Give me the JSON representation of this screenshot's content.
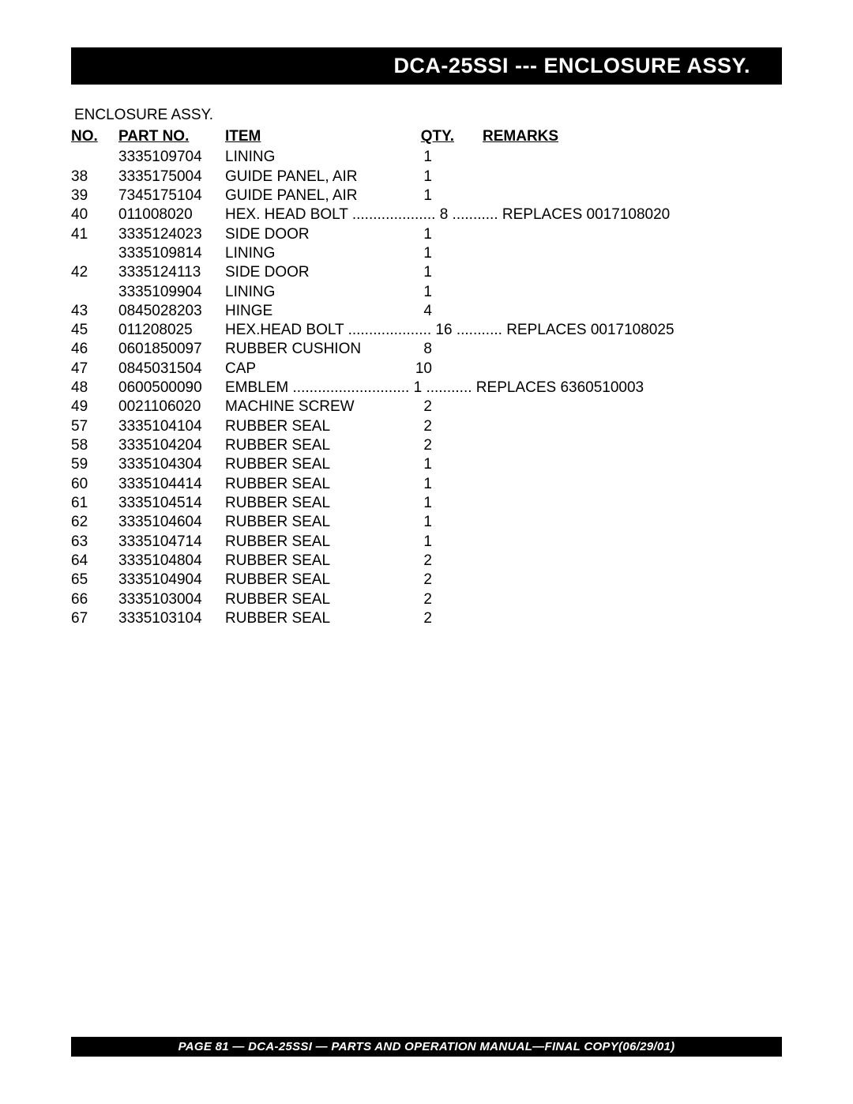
{
  "title_bar": "DCA-25SSI --- ENCLOSURE ASSY.",
  "section_heading": "ENCLOSURE ASSY.",
  "headers": {
    "no": "NO.",
    "part": "PART NO.",
    "item": "ITEM",
    "qty": "QTY.",
    "remarks": "REMARKS"
  },
  "rows": [
    {
      "no": "",
      "part": "3335109704",
      "item": "LINING",
      "qty": "1",
      "remarks": "",
      "dotted": false
    },
    {
      "no": "38",
      "part": "3335175004",
      "item": "GUIDE PANEL, AIR",
      "qty": "1",
      "remarks": "",
      "dotted": false
    },
    {
      "no": "39",
      "part": "7345175104",
      "item": "GUIDE PANEL, AIR",
      "qty": "1",
      "remarks": "",
      "dotted": false
    },
    {
      "no": "40",
      "part": "011008020",
      "item": "HEX. HEAD BOLT",
      "qty": "8",
      "remarks": "REPLACES 0017108020",
      "dotted": true
    },
    {
      "no": "41",
      "part": "3335124023",
      "item": "SIDE DOOR",
      "qty": "1",
      "remarks": "",
      "dotted": false
    },
    {
      "no": "",
      "part": "3335109814",
      "item": "LINING",
      "qty": "1",
      "remarks": "",
      "dotted": false
    },
    {
      "no": "42",
      "part": "3335124113",
      "item": "SIDE DOOR",
      "qty": "1",
      "remarks": "",
      "dotted": false
    },
    {
      "no": "",
      "part": "3335109904",
      "item": "LINING",
      "qty": "1",
      "remarks": "",
      "dotted": false
    },
    {
      "no": "43",
      "part": "0845028203",
      "item": "HINGE",
      "qty": "4",
      "remarks": "",
      "dotted": false
    },
    {
      "no": "45",
      "part": "011208025",
      "item": "HEX.HEAD BOLT",
      "qty": "16",
      "remarks": "REPLACES 0017108025",
      "dotted": true
    },
    {
      "no": "46",
      "part": "0601850097",
      "item": "RUBBER CUSHION",
      "qty": "8",
      "remarks": "",
      "dotted": false
    },
    {
      "no": "47",
      "part": "0845031504",
      "item": "CAP",
      "qty": "10",
      "remarks": "",
      "dotted": false
    },
    {
      "no": "48",
      "part": "0600500090",
      "item": "EMBLEM",
      "qty": "1",
      "remarks": "REPLACES 6360510003",
      "dotted": true
    },
    {
      "no": "49",
      "part": "0021106020",
      "item": "MACHINE SCREW",
      "qty": "2",
      "remarks": "",
      "dotted": false
    },
    {
      "no": "57",
      "part": "3335104104",
      "item": "RUBBER SEAL",
      "qty": "2",
      "remarks": "",
      "dotted": false
    },
    {
      "no": "58",
      "part": "3335104204",
      "item": "RUBBER SEAL",
      "qty": "2",
      "remarks": "",
      "dotted": false
    },
    {
      "no": "59",
      "part": "3335104304",
      "item": "RUBBER SEAL",
      "qty": "1",
      "remarks": "",
      "dotted": false
    },
    {
      "no": "60",
      "part": "3335104414",
      "item": "RUBBER SEAL",
      "qty": "1",
      "remarks": "",
      "dotted": false
    },
    {
      "no": "61",
      "part": "3335104514",
      "item": "RUBBER SEAL",
      "qty": "1",
      "remarks": "",
      "dotted": false
    },
    {
      "no": "62",
      "part": "3335104604",
      "item": "RUBBER SEAL",
      "qty": "1",
      "remarks": "",
      "dotted": false
    },
    {
      "no": "63",
      "part": "3335104714",
      "item": "RUBBER SEAL",
      "qty": "1",
      "remarks": "",
      "dotted": false
    },
    {
      "no": "64",
      "part": "3335104804",
      "item": "RUBBER SEAL",
      "qty": "2",
      "remarks": "",
      "dotted": false
    },
    {
      "no": "65",
      "part": "3335104904",
      "item": "RUBBER SEAL",
      "qty": "2",
      "remarks": "",
      "dotted": false
    },
    {
      "no": "66",
      "part": "3335103004",
      "item": "RUBBER SEAL",
      "qty": "2",
      "remarks": "",
      "dotted": false
    },
    {
      "no": "67",
      "part": "3335103104",
      "item": "RUBBER SEAL",
      "qty": "2",
      "remarks": "",
      "dotted": false
    }
  ],
  "footer": "PAGE 81 — DCA-25SSI — PARTS AND OPERATION  MANUAL—FINAL COPY(06/29/01)",
  "colors": {
    "bar_bg": "#000000",
    "bar_fg": "#ffffff",
    "page_bg": "#ffffff",
    "text": "#000000"
  },
  "layout": {
    "item_col_width_chars": 36,
    "remarks_lead_dots": 11
  }
}
